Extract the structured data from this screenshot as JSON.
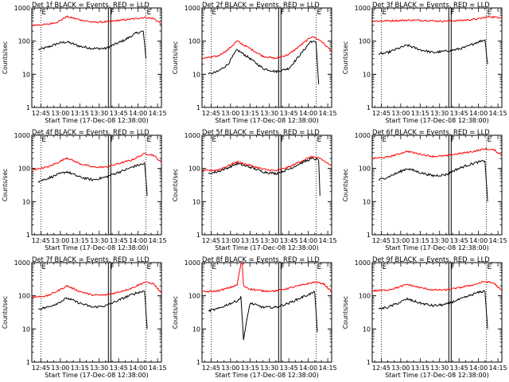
{
  "figure": {
    "x_label": "Start Time (17-Dec-08 12:38:00)",
    "y_label": "Counts/sec"
  },
  "chart_data": [
    {
      "type": "line",
      "title": "Det 1f BLACK = Events, RED = LLD",
      "xlabel": "Start Time (17-Dec-08 12:38:00)",
      "ylabel": "Counts/sec",
      "x_ticks": [
        "12:45",
        "13:00",
        "13:15",
        "13:30",
        "13:45",
        "14:00",
        "14:15"
      ],
      "y_ticks": [
        "1",
        "10",
        "100",
        "1000"
      ],
      "y_scale": "log",
      "ylim": [
        1,
        1000
      ],
      "markers": [
        {
          "time": "12:45",
          "label": "E",
          "style": "dotted"
        },
        {
          "time": "13:38",
          "label": "F",
          "style": "solid"
        },
        {
          "time": "14:06",
          "label": "E",
          "style": "dotted"
        }
      ],
      "series": [
        {
          "color": "#000000",
          "x": [
            "12:43",
            "12:50",
            "12:58",
            "13:05",
            "13:15",
            "13:25",
            "13:35",
            "13:42",
            "13:50",
            "13:58",
            "14:04",
            "14:06"
          ],
          "y": [
            55,
            65,
            85,
            95,
            70,
            60,
            60,
            80,
            110,
            170,
            200,
            30
          ]
        },
        {
          "color": "#ff0000",
          "x": [
            "12:38",
            "12:50",
            "12:58",
            "13:05",
            "13:15",
            "13:25",
            "13:35",
            "13:45",
            "13:55",
            "14:05",
            "14:12",
            "14:18"
          ],
          "y": [
            300,
            320,
            380,
            550,
            440,
            370,
            380,
            420,
            460,
            520,
            480,
            330
          ]
        }
      ]
    },
    {
      "type": "line",
      "title": "Det 2f BLACK = Events, RED = LLD",
      "xlabel": "Start Time (17-Dec-08 12:38:00)",
      "ylabel": "Counts/sec",
      "x_ticks": [
        "12:45",
        "13:00",
        "13:15",
        "13:30",
        "13:45",
        "14:00",
        "14:15"
      ],
      "y_ticks": [
        "1",
        "10",
        "100",
        "1000"
      ],
      "y_scale": "log",
      "ylim": [
        1,
        1000
      ],
      "markers": [
        {
          "time": "12:45",
          "label": "E",
          "style": "dotted"
        },
        {
          "time": "13:38",
          "label": "F",
          "style": "solid"
        },
        {
          "time": "14:06",
          "label": "E",
          "style": "dotted"
        }
      ],
      "series": [
        {
          "color": "#000000",
          "x": [
            "12:43",
            "12:50",
            "12:58",
            "13:05",
            "13:15",
            "13:25",
            "13:35",
            "13:45",
            "13:55",
            "14:02",
            "14:06",
            "14:08"
          ],
          "y": [
            10,
            12,
            20,
            55,
            30,
            15,
            12,
            15,
            45,
            100,
            90,
            5
          ]
        },
        {
          "color": "#ff0000",
          "x": [
            "12:38",
            "12:50",
            "12:58",
            "13:05",
            "13:15",
            "13:25",
            "13:35",
            "13:45",
            "13:55",
            "14:03",
            "14:10",
            "14:18"
          ],
          "y": [
            30,
            35,
            55,
            100,
            60,
            35,
            30,
            40,
            80,
            140,
            100,
            50
          ]
        }
      ]
    },
    {
      "type": "line",
      "title": "Det 3f BLACK = Events, RED = LLD",
      "xlabel": "Start Time (17-Dec-08 12:38:00)",
      "ylabel": "Counts/sec",
      "x_ticks": [
        "12:45",
        "13:00",
        "13:15",
        "13:30",
        "13:45",
        "14:00",
        "14:15"
      ],
      "y_ticks": [
        "1",
        "10",
        "100",
        "1000"
      ],
      "y_scale": "log",
      "ylim": [
        1,
        1000
      ],
      "markers": [
        {
          "time": "12:45",
          "label": "E",
          "style": "dotted"
        },
        {
          "time": "13:38",
          "label": "F",
          "style": "solid"
        },
        {
          "time": "14:06",
          "label": "E",
          "style": "dotted"
        }
      ],
      "series": [
        {
          "color": "#000000",
          "x": [
            "12:43",
            "12:50",
            "12:58",
            "13:05",
            "13:15",
            "13:25",
            "13:35",
            "13:42",
            "13:50",
            "13:58",
            "14:05",
            "14:07"
          ],
          "y": [
            40,
            45,
            60,
            75,
            55,
            45,
            50,
            55,
            65,
            90,
            110,
            20
          ]
        },
        {
          "color": "#ff0000",
          "x": [
            "12:38",
            "12:50",
            "13:00",
            "13:10",
            "13:20",
            "13:30",
            "13:40",
            "13:50",
            "14:00",
            "14:08",
            "14:14",
            "14:18"
          ],
          "y": [
            400,
            410,
            420,
            430,
            420,
            400,
            410,
            430,
            470,
            550,
            520,
            520
          ]
        }
      ]
    },
    {
      "type": "line",
      "title": "Det 4f BLACK = Events, RED = LLD",
      "xlabel": "Start Time (17-Dec-08 12:38:00)",
      "ylabel": "Counts/sec",
      "x_ticks": [
        "12:45",
        "13:00",
        "13:15",
        "13:30",
        "13:45",
        "14:00",
        "14:15"
      ],
      "y_ticks": [
        "1",
        "10",
        "100",
        "1000"
      ],
      "y_scale": "log",
      "ylim": [
        1,
        1000
      ],
      "markers": [
        {
          "time": "12:45",
          "label": "E",
          "style": "dotted"
        },
        {
          "time": "13:38",
          "label": "F",
          "style": "solid"
        },
        {
          "time": "14:06",
          "label": "E",
          "style": "dotted"
        }
      ],
      "series": [
        {
          "color": "#000000",
          "x": [
            "12:43",
            "12:50",
            "12:58",
            "13:05",
            "13:15",
            "13:25",
            "13:35",
            "13:42",
            "13:50",
            "13:58",
            "14:05",
            "14:07"
          ],
          "y": [
            40,
            50,
            65,
            80,
            55,
            45,
            55,
            70,
            90,
            120,
            140,
            15
          ]
        },
        {
          "color": "#ff0000",
          "x": [
            "12:38",
            "12:50",
            "12:58",
            "13:05",
            "13:15",
            "13:25",
            "13:35",
            "13:45",
            "13:55",
            "14:05",
            "14:12",
            "14:18"
          ],
          "y": [
            90,
            110,
            150,
            210,
            140,
            110,
            110,
            140,
            180,
            280,
            250,
            150
          ]
        }
      ]
    },
    {
      "type": "line",
      "title": "Det 5f BLACK = Events, RED = LLD",
      "xlabel": "Start Time (17-Dec-08 12:38:00)",
      "ylabel": "Counts/sec",
      "x_ticks": [
        "12:45",
        "13:00",
        "13:15",
        "13:30",
        "13:45",
        "14:00",
        "14:15"
      ],
      "y_ticks": [
        "1",
        "10",
        "100",
        "1000"
      ],
      "y_scale": "log",
      "ylim": [
        1,
        1000
      ],
      "markers": [
        {
          "time": "12:45",
          "label": "E",
          "style": "dotted"
        },
        {
          "time": "13:38",
          "label": "F",
          "style": "solid"
        },
        {
          "time": "14:06",
          "label": "E",
          "style": "dotted"
        }
      ],
      "series": [
        {
          "color": "#000000",
          "x": [
            "12:43",
            "12:50",
            "12:58",
            "13:05",
            "13:15",
            "13:25",
            "13:35",
            "13:45",
            "13:55",
            "14:03",
            "14:08",
            "14:09"
          ],
          "y": [
            70,
            80,
            105,
            140,
            110,
            80,
            70,
            95,
            150,
            200,
            180,
            15
          ]
        },
        {
          "color": "#ff0000",
          "x": [
            "12:38",
            "12:50",
            "12:58",
            "13:05",
            "13:15",
            "13:25",
            "13:35",
            "13:45",
            "13:55",
            "14:03",
            "14:10",
            "14:18"
          ],
          "y": [
            85,
            90,
            120,
            160,
            125,
            95,
            85,
            110,
            170,
            230,
            190,
            120
          ]
        }
      ]
    },
    {
      "type": "line",
      "title": "Det 6f BLACK = Events, RED = LLD",
      "xlabel": "Start Time (17-Dec-08 12:38:00)",
      "ylabel": "Counts/sec",
      "x_ticks": [
        "12:45",
        "13:00",
        "13:15",
        "13:30",
        "13:45",
        "14:00",
        "14:15"
      ],
      "y_ticks": [
        "1",
        "10",
        "100",
        "1000"
      ],
      "y_scale": "log",
      "ylim": [
        1,
        1000
      ],
      "markers": [
        {
          "time": "12:45",
          "label": "E",
          "style": "dotted"
        },
        {
          "time": "13:38",
          "label": "F",
          "style": "solid"
        },
        {
          "time": "14:06",
          "label": "E",
          "style": "dotted"
        }
      ],
      "series": [
        {
          "color": "#000000",
          "x": [
            "12:43",
            "12:50",
            "12:58",
            "13:05",
            "13:15",
            "13:25",
            "13:35",
            "13:42",
            "13:50",
            "13:58",
            "14:05",
            "14:07"
          ],
          "y": [
            45,
            55,
            75,
            100,
            75,
            60,
            65,
            90,
            120,
            150,
            170,
            10
          ]
        },
        {
          "color": "#ff0000",
          "x": [
            "12:38",
            "12:50",
            "12:58",
            "13:05",
            "13:15",
            "13:25",
            "13:35",
            "13:45",
            "13:55",
            "14:05",
            "14:12",
            "14:18"
          ],
          "y": [
            200,
            220,
            270,
            330,
            270,
            230,
            240,
            280,
            320,
            390,
            360,
            250
          ]
        }
      ]
    },
    {
      "type": "line",
      "title": "Det 7f BLACK = Events, RED = LLD",
      "xlabel": "Start Time (17-Dec-08 12:38:00)",
      "ylabel": "Counts/sec",
      "x_ticks": [
        "12:45",
        "13:00",
        "13:15",
        "13:30",
        "13:45",
        "14:00",
        "14:15"
      ],
      "y_ticks": [
        "1",
        "10",
        "100",
        "1000"
      ],
      "y_scale": "log",
      "ylim": [
        1,
        1000
      ],
      "markers": [
        {
          "time": "12:45",
          "label": "E",
          "style": "dotted"
        },
        {
          "time": "13:38",
          "label": "F",
          "style": "solid"
        },
        {
          "time": "14:06",
          "label": "E",
          "style": "dotted"
        }
      ],
      "series": [
        {
          "color": "#000000",
          "x": [
            "12:43",
            "12:50",
            "12:58",
            "13:05",
            "13:15",
            "13:25",
            "13:35",
            "13:42",
            "13:50",
            "13:58",
            "14:05",
            "14:07"
          ],
          "y": [
            40,
            45,
            60,
            85,
            60,
            45,
            50,
            65,
            90,
            120,
            140,
            10
          ]
        },
        {
          "color": "#ff0000",
          "x": [
            "12:38",
            "12:50",
            "12:58",
            "13:05",
            "13:15",
            "13:25",
            "13:35",
            "13:45",
            "13:55",
            "14:05",
            "14:12",
            "14:18"
          ],
          "y": [
            90,
            100,
            140,
            200,
            135,
            105,
            105,
            130,
            170,
            260,
            230,
            120
          ]
        }
      ]
    },
    {
      "type": "line",
      "title": "Det 8f BLACK = Events, RED = LLD",
      "xlabel": "Start Time (17-Dec-08 12:38:00)",
      "ylabel": "Counts/sec",
      "x_ticks": [
        "12:45",
        "13:00",
        "13:15",
        "13:30",
        "13:45",
        "14:00",
        "14:15"
      ],
      "y_ticks": [
        "1",
        "10",
        "100",
        "1000"
      ],
      "y_scale": "log",
      "ylim": [
        1,
        1000
      ],
      "markers": [
        {
          "time": "12:45",
          "label": "E",
          "style": "dotted"
        },
        {
          "time": "13:38",
          "label": "F",
          "style": "solid"
        },
        {
          "time": "14:06",
          "label": "E",
          "style": "dotted"
        }
      ],
      "series": [
        {
          "color": "#000000",
          "x": [
            "12:43",
            "12:50",
            "12:58",
            "13:05",
            "13:08",
            "13:10",
            "13:15",
            "13:25",
            "13:35",
            "13:45",
            "13:55",
            "14:05",
            "14:07"
          ],
          "y": [
            35,
            40,
            55,
            70,
            90,
            5,
            60,
            45,
            45,
            60,
            90,
            130,
            8
          ]
        },
        {
          "color": "#ff0000",
          "x": [
            "12:38",
            "12:50",
            "12:58",
            "13:05",
            "13:08",
            "13:09",
            "13:10",
            "13:15",
            "13:25",
            "13:35",
            "13:45",
            "13:55",
            "14:05",
            "14:12",
            "14:18"
          ],
          "y": [
            130,
            140,
            170,
            210,
            900,
            1000,
            200,
            160,
            140,
            140,
            170,
            210,
            260,
            230,
            130
          ]
        }
      ]
    },
    {
      "type": "line",
      "title": "Det 9f BLACK = Events, RED = LLD",
      "xlabel": "Start Time (17-Dec-08 12:38:00)",
      "ylabel": "Counts/sec",
      "x_ticks": [
        "12:45",
        "13:00",
        "13:15",
        "13:30",
        "13:45",
        "14:00",
        "14:15"
      ],
      "y_ticks": [
        "1",
        "10",
        "100",
        "1000"
      ],
      "y_scale": "log",
      "ylim": [
        1,
        1000
      ],
      "markers": [
        {
          "time": "12:45",
          "label": "E",
          "style": "dotted"
        },
        {
          "time": "13:38",
          "label": "F",
          "style": "solid"
        },
        {
          "time": "14:06",
          "label": "E",
          "style": "dotted"
        }
      ],
      "series": [
        {
          "color": "#000000",
          "x": [
            "12:43",
            "12:50",
            "12:58",
            "13:05",
            "13:15",
            "13:25",
            "13:35",
            "13:42",
            "13:50",
            "13:58",
            "14:05",
            "14:07"
          ],
          "y": [
            40,
            45,
            60,
            80,
            60,
            50,
            55,
            70,
            90,
            120,
            140,
            10
          ]
        },
        {
          "color": "#ff0000",
          "x": [
            "12:38",
            "12:50",
            "12:58",
            "13:05",
            "13:15",
            "13:25",
            "13:35",
            "13:45",
            "13:55",
            "14:05",
            "14:12",
            "14:18"
          ],
          "y": [
            140,
            150,
            180,
            220,
            175,
            150,
            150,
            175,
            210,
            270,
            240,
            140
          ]
        }
      ]
    }
  ]
}
